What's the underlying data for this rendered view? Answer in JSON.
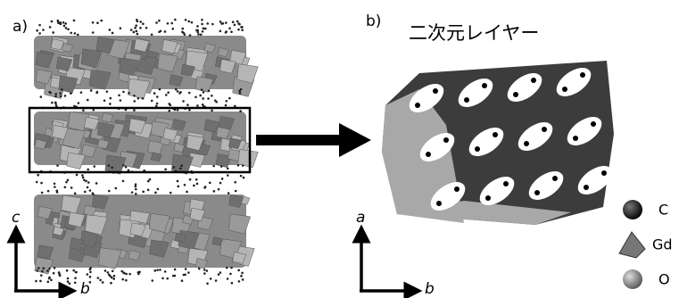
{
  "panels": [
    {
      "label": "a)",
      "axes": {
        "vertical": "c",
        "horizontal": "b"
      }
    },
    {
      "label": "b)",
      "title": "二次元レイヤー",
      "axes": {
        "vertical": "a",
        "horizontal": "b"
      }
    }
  ],
  "legend": [
    "C",
    "Gd",
    "O"
  ]
}
